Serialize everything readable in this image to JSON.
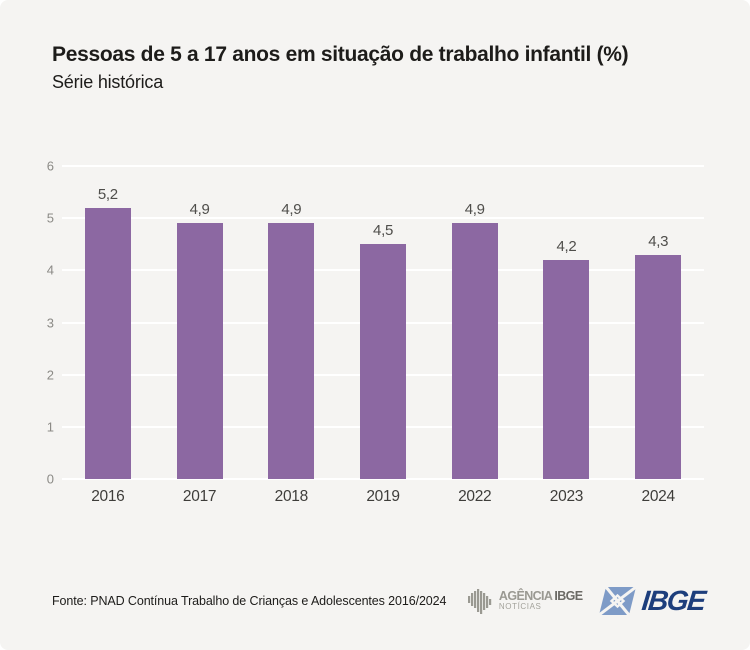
{
  "page": {
    "background": "#f5f4f2"
  },
  "header": {
    "title": "Pessoas de 5 a 17 anos em situação de trabalho infantil (%)",
    "subtitle": "Série histórica"
  },
  "chart_data": {
    "type": "bar",
    "title": "Pessoas de 5 a 17 anos em situação de trabalho infantil (%)",
    "subtitle": "Série histórica",
    "categories": [
      "2016",
      "2017",
      "2018",
      "2019",
      "2022",
      "2023",
      "2024"
    ],
    "values": [
      5.2,
      4.9,
      4.9,
      4.5,
      4.9,
      4.2,
      4.3
    ],
    "value_labels": [
      "5,2",
      "4,9",
      "4,9",
      "4,5",
      "4,9",
      "4,2",
      "4,3"
    ],
    "xlabel": "",
    "ylabel": "",
    "ylim": [
      0,
      6
    ],
    "yticks": [
      0,
      1,
      2,
      3,
      4,
      5,
      6
    ],
    "grid": true,
    "grid_color": "#ffffff",
    "bar_color": "#8c68a2",
    "legend": "none"
  },
  "footer": {
    "source": "Fonte: PNAD Contínua Trabalho de Crianças e Adolescentes 2016/2024",
    "agencia_logo": {
      "line1_light": "AGÊNCIA",
      "line1_bold": "IBGE",
      "line2": "NOTÍCIAS"
    },
    "ibge_logo": {
      "text": "IBGE",
      "blue_dark": "#1d3e7c",
      "blue_light": "#7e9bc7"
    }
  }
}
